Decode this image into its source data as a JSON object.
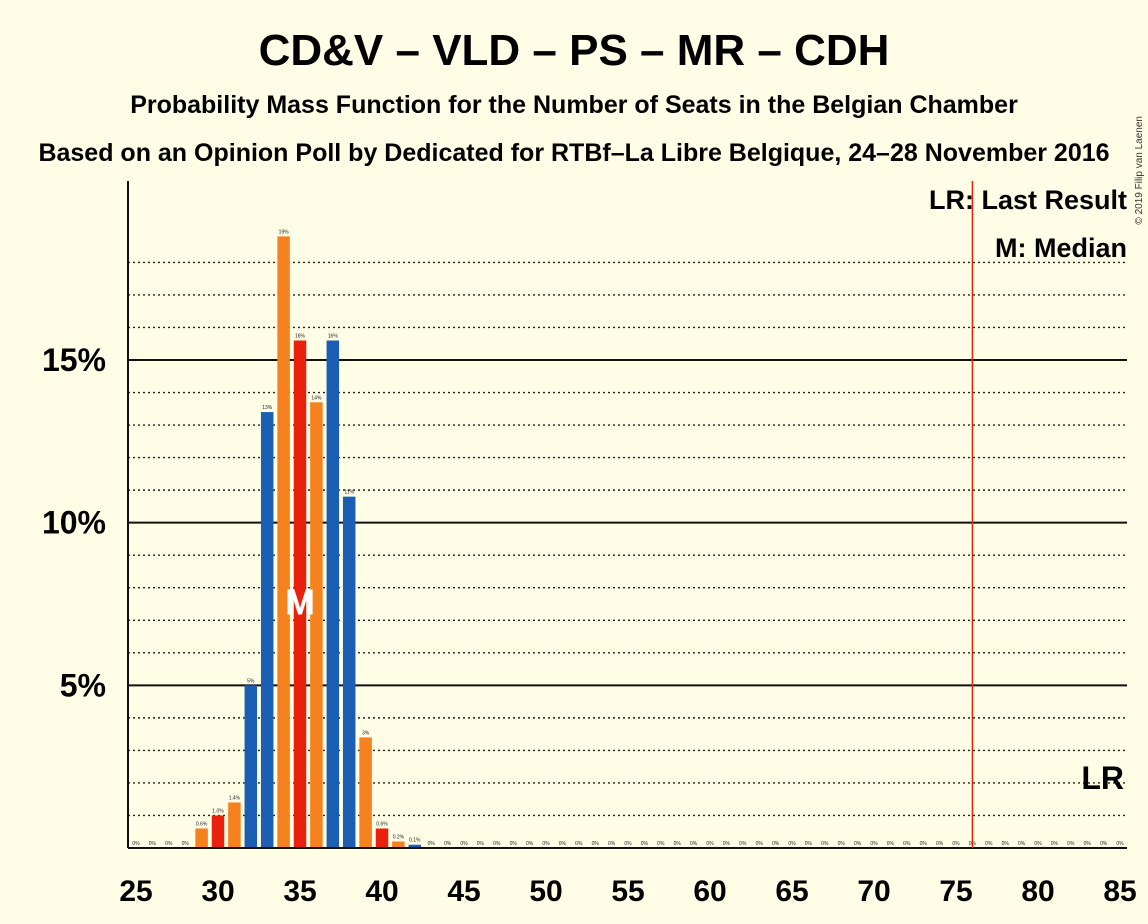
{
  "title": "CD&V – VLD – PS – MR – CDH",
  "subtitle": "Probability Mass Function for the Number of Seats in the Belgian Chamber",
  "subtitle2": "Based on an Opinion Poll by Dedicated for RTBf–La Libre Belgique, 24–28 November 2016",
  "copyright": "© 2019 Filip van Laenen",
  "legend": {
    "last_result": "LR: Last Result",
    "median": "M: Median"
  },
  "lr_marker": "LR",
  "median_marker": "M",
  "colors": {
    "blue": "#1a5fb4",
    "orange": "#f5821f",
    "red": "#e8200c",
    "lr_line": "#e8200c",
    "background": "#fffde6"
  },
  "chart_data": {
    "type": "bar",
    "x": [
      25,
      26,
      27,
      28,
      29,
      30,
      31,
      32,
      33,
      34,
      35,
      36,
      37,
      38,
      39,
      40,
      41,
      42,
      43,
      44,
      45,
      46,
      47,
      48,
      49,
      50,
      51,
      52,
      53,
      54,
      55,
      56,
      57,
      58,
      59,
      60,
      61,
      62,
      63,
      64,
      65,
      66,
      67,
      68,
      69,
      70,
      71,
      72,
      73,
      74,
      75,
      76,
      77,
      78,
      79,
      80,
      81,
      82,
      83,
      84,
      85
    ],
    "values": [
      0,
      0,
      0,
      0,
      0.6,
      1.0,
      1.4,
      5.0,
      13.4,
      18.8,
      15.6,
      13.7,
      15.6,
      10.8,
      3.4,
      0.6,
      0.2,
      0.1,
      0,
      0,
      0,
      0,
      0,
      0,
      0,
      0,
      0,
      0,
      0,
      0,
      0,
      0,
      0,
      0,
      0,
      0,
      0,
      0,
      0,
      0,
      0,
      0,
      0,
      0,
      0,
      0,
      0,
      0,
      0,
      0,
      0,
      0,
      0,
      0,
      0,
      0,
      0,
      0,
      0,
      0,
      0
    ],
    "labels": [
      "0%",
      "0%",
      "0%",
      "0%",
      "0.6%",
      "1.0%",
      "1.4%",
      "5%",
      "13%",
      "19%",
      "16%",
      "14%",
      "16%",
      "11%",
      "3%",
      "0.6%",
      "0.2%",
      "0.1%",
      "0%",
      "0%",
      "0%",
      "0%",
      "0%",
      "0%",
      "0%",
      "0%",
      "0%",
      "0%",
      "0%",
      "0%",
      "0%",
      "0%",
      "0%",
      "0%",
      "0%",
      "0%",
      "0%",
      "0%",
      "0%",
      "0%",
      "0%",
      "0%",
      "0%",
      "0%",
      "0%",
      "0%",
      "0%",
      "0%",
      "0%",
      "0%",
      "0%",
      "0%",
      "0%",
      "0%",
      "0%",
      "0%",
      "0%",
      "0%",
      "0%",
      "0%",
      "0%"
    ],
    "bar_colors": [
      "blue",
      "orange",
      "red",
      "orange",
      "orange",
      "red",
      "orange",
      "blue",
      "blue",
      "orange",
      "red",
      "orange",
      "blue",
      "blue",
      "orange",
      "red",
      "orange",
      "blue",
      "blue",
      "orange",
      "red",
      "orange",
      "blue",
      "blue",
      "orange",
      "red",
      "orange",
      "blue",
      "blue",
      "orange",
      "red",
      "orange",
      "blue",
      "blue",
      "orange",
      "red",
      "orange",
      "blue",
      "blue",
      "orange",
      "red",
      "orange",
      "blue",
      "blue",
      "orange",
      "red",
      "orange",
      "blue",
      "blue",
      "orange",
      "red",
      "orange",
      "blue",
      "blue",
      "orange",
      "red",
      "orange",
      "blue",
      "blue",
      "orange",
      "red"
    ],
    "median": 35,
    "last_result": 76,
    "xlim": [
      25,
      85
    ],
    "ylim": [
      0,
      20
    ],
    "yticks": [
      5,
      10,
      15
    ],
    "ytick_labels": [
      "5%",
      "10%",
      "15%"
    ],
    "xticks": [
      25,
      30,
      35,
      40,
      45,
      50,
      55,
      60,
      65,
      70,
      75,
      80,
      85
    ],
    "xtick_labels": [
      "25",
      "30",
      "35",
      "40",
      "45",
      "50",
      "55",
      "60",
      "65",
      "70",
      "75",
      "80",
      "85"
    ],
    "minor_gridlines": [
      1,
      2,
      3,
      4,
      6,
      7,
      8,
      9,
      11,
      12,
      13,
      14,
      16,
      17,
      18
    ]
  }
}
